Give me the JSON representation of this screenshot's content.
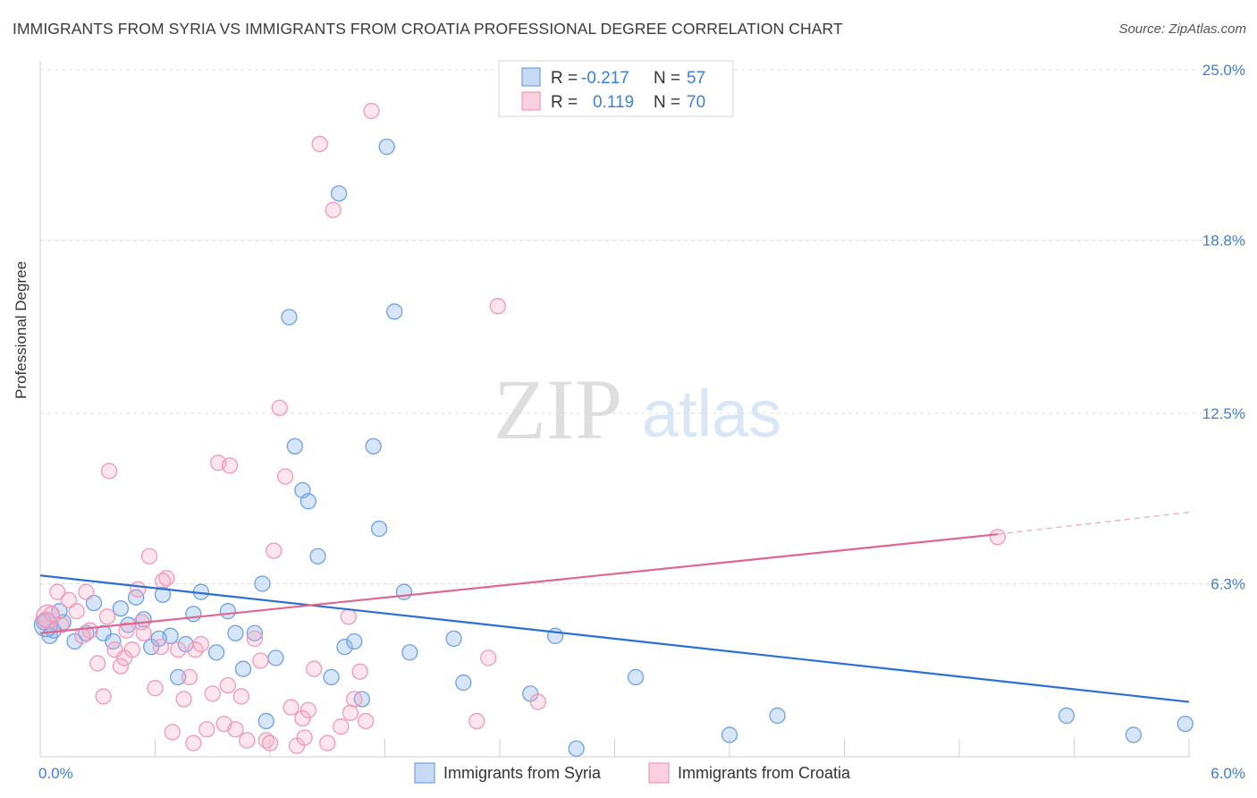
{
  "title": "IMMIGRANTS FROM SYRIA VS IMMIGRANTS FROM CROATIA PROFESSIONAL DEGREE CORRELATION CHART",
  "source": "Source: ZipAtlas.com",
  "watermark": {
    "zip": "ZIP",
    "atlas": "atlas"
  },
  "legend": {
    "r_label": "R =",
    "n_label": "N =",
    "rows": [
      {
        "r": "-0.217",
        "n": "57",
        "color": "#6fa0e6"
      },
      {
        "r": "0.119",
        "n": "70",
        "color": "#f199b6"
      }
    ]
  },
  "bottom_legend": [
    "Immigrants from Syria",
    "Immigrants from Croatia"
  ],
  "chart_data": {
    "type": "scatter",
    "title": "IMMIGRANTS FROM SYRIA VS IMMIGRANTS FROM CROATIA PROFESSIONAL DEGREE CORRELATION CHART",
    "xlabel": "",
    "ylabel": "Professional Degree",
    "xlim": [
      0.0,
      6.0
    ],
    "ylim": [
      0.0,
      25.0
    ],
    "x_tick_labels": [
      "0.0%",
      "6.0%"
    ],
    "y_ticks": [
      6.3,
      12.5,
      18.8,
      25.0
    ],
    "y_tick_labels": [
      "6.3%",
      "12.5%",
      "18.8%",
      "25.0%"
    ],
    "grid": true,
    "legend_position": "top-center",
    "colors": {
      "syria": "#6fa0e6",
      "croatia": "#f199b6",
      "syria_line": "#2c6fd4",
      "croatia_line": "#e0668f"
    },
    "series": [
      {
        "name": "Immigrants from Syria",
        "r": -0.217,
        "n": 57,
        "trend": {
          "x": [
            0.0,
            6.0
          ],
          "y": [
            6.6,
            2.0
          ]
        },
        "points": [
          [
            0.02,
            4.9
          ],
          [
            0.05,
            4.4
          ],
          [
            0.07,
            4.6
          ],
          [
            0.12,
            4.9
          ],
          [
            0.18,
            4.2
          ],
          [
            0.24,
            4.5
          ],
          [
            0.28,
            5.6
          ],
          [
            0.33,
            4.5
          ],
          [
            0.38,
            4.2
          ],
          [
            0.42,
            5.4
          ],
          [
            0.46,
            4.8
          ],
          [
            0.5,
            5.8
          ],
          [
            0.54,
            5.0
          ],
          [
            0.58,
            4.0
          ],
          [
            0.64,
            5.9
          ],
          [
            0.68,
            4.4
          ],
          [
            0.72,
            2.9
          ],
          [
            0.76,
            4.1
          ],
          [
            0.8,
            5.2
          ],
          [
            0.84,
            6.0
          ],
          [
            0.92,
            3.8
          ],
          [
            0.98,
            5.3
          ],
          [
            1.02,
            4.5
          ],
          [
            1.06,
            3.2
          ],
          [
            1.12,
            4.5
          ],
          [
            1.16,
            6.3
          ],
          [
            1.18,
            1.3
          ],
          [
            1.23,
            3.6
          ],
          [
            1.3,
            16.0
          ],
          [
            1.33,
            11.3
          ],
          [
            1.37,
            9.7
          ],
          [
            1.4,
            9.3
          ],
          [
            1.45,
            7.3
          ],
          [
            1.52,
            2.9
          ],
          [
            1.56,
            20.5
          ],
          [
            1.59,
            4.0
          ],
          [
            1.64,
            4.2
          ],
          [
            1.68,
            2.1
          ],
          [
            1.74,
            11.3
          ],
          [
            1.77,
            8.3
          ],
          [
            1.81,
            22.2
          ],
          [
            1.85,
            16.2
          ],
          [
            1.9,
            6.0
          ],
          [
            1.93,
            3.8
          ],
          [
            2.16,
            4.3
          ],
          [
            2.21,
            2.7
          ],
          [
            2.56,
            2.3
          ],
          [
            2.69,
            4.4
          ],
          [
            2.8,
            0.3
          ],
          [
            3.11,
            2.9
          ],
          [
            3.6,
            0.8
          ],
          [
            3.85,
            1.5
          ],
          [
            5.36,
            1.5
          ],
          [
            5.71,
            0.8
          ],
          [
            5.98,
            1.2
          ],
          [
            0.1,
            5.3
          ],
          [
            0.62,
            4.3
          ]
        ]
      },
      {
        "name": "Immigrants from Croatia",
        "r": 0.119,
        "n": 70,
        "trend": {
          "x": [
            0.0,
            5.0
          ],
          "y": [
            4.5,
            8.1
          ],
          "dashed_to": {
            "x": 6.0,
            "y": 8.9
          }
        },
        "points": [
          [
            0.03,
            5.0
          ],
          [
            0.06,
            5.2
          ],
          [
            0.09,
            6.0
          ],
          [
            0.11,
            4.8
          ],
          [
            0.15,
            5.7
          ],
          [
            0.19,
            5.3
          ],
          [
            0.22,
            4.4
          ],
          [
            0.26,
            4.6
          ],
          [
            0.3,
            3.4
          ],
          [
            0.33,
            2.2
          ],
          [
            0.36,
            10.4
          ],
          [
            0.39,
            3.9
          ],
          [
            0.42,
            3.3
          ],
          [
            0.45,
            4.6
          ],
          [
            0.48,
            3.9
          ],
          [
            0.51,
            6.1
          ],
          [
            0.54,
            4.5
          ],
          [
            0.57,
            7.3
          ],
          [
            0.6,
            2.5
          ],
          [
            0.63,
            4.0
          ],
          [
            0.66,
            6.5
          ],
          [
            0.69,
            0.9
          ],
          [
            0.72,
            3.9
          ],
          [
            0.75,
            2.1
          ],
          [
            0.78,
            2.9
          ],
          [
            0.81,
            3.9
          ],
          [
            0.84,
            4.1
          ],
          [
            0.87,
            1.0
          ],
          [
            0.9,
            2.3
          ],
          [
            0.93,
            10.7
          ],
          [
            0.96,
            1.2
          ],
          [
            0.99,
            10.6
          ],
          [
            1.02,
            1.0
          ],
          [
            1.05,
            2.2
          ],
          [
            1.08,
            0.6
          ],
          [
            1.12,
            4.3
          ],
          [
            1.15,
            3.5
          ],
          [
            1.18,
            0.6
          ],
          [
            1.22,
            7.5
          ],
          [
            1.25,
            12.7
          ],
          [
            1.28,
            10.2
          ],
          [
            1.31,
            1.8
          ],
          [
            1.34,
            0.4
          ],
          [
            1.37,
            1.4
          ],
          [
            1.4,
            1.7
          ],
          [
            1.43,
            3.2
          ],
          [
            1.46,
            22.3
          ],
          [
            1.5,
            0.5
          ],
          [
            1.53,
            19.9
          ],
          [
            1.57,
            1.1
          ],
          [
            1.61,
            5.1
          ],
          [
            1.64,
            2.1
          ],
          [
            1.67,
            3.1
          ],
          [
            1.7,
            1.3
          ],
          [
            1.73,
            23.5
          ],
          [
            2.28,
            1.3
          ],
          [
            2.34,
            3.6
          ],
          [
            2.39,
            16.4
          ],
          [
            2.6,
            2.0
          ],
          [
            0.24,
            6.0
          ],
          [
            0.35,
            5.1
          ],
          [
            0.44,
            3.6
          ],
          [
            0.53,
            4.9
          ],
          [
            0.64,
            6.4
          ],
          [
            0.8,
            0.5
          ],
          [
            0.98,
            2.6
          ],
          [
            1.2,
            0.5
          ],
          [
            1.38,
            0.7
          ],
          [
            1.62,
            1.6
          ],
          [
            5.0,
            8.0
          ]
        ]
      }
    ]
  }
}
